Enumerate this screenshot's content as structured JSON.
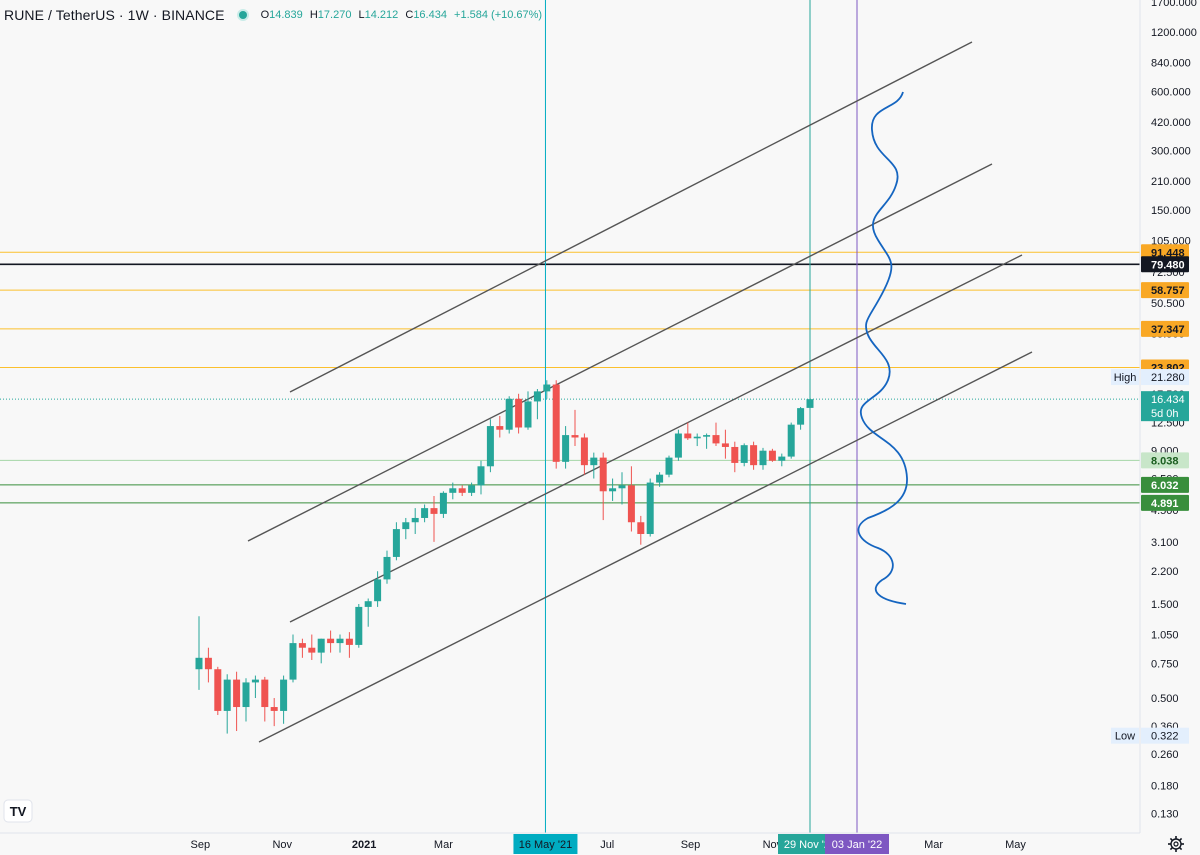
{
  "legend": {
    "symbol": "RUNE / TetherUS · 1W · BINANCE",
    "ohlc": [
      {
        "k": "O",
        "v": "14.839"
      },
      {
        "k": "H",
        "v": "17.270"
      },
      {
        "k": "L",
        "v": "14.212"
      },
      {
        "k": "C",
        "v": "16.434"
      }
    ],
    "change": "+1.584 (+10.67%)"
  },
  "colors": {
    "up": "#26a69a",
    "down": "#ef5350",
    "background": "#f8f8f8",
    "channel": "#555555",
    "fib_line": "#fbc02d",
    "black_line": "#131722",
    "green_line": "#388e3c",
    "may_line": "#00acc1",
    "nov_line": "#26a69a",
    "jan_line": "#7e57c2",
    "wave": "#1565c0"
  },
  "chart_data": {
    "type": "candlestick",
    "symbol": "RUNE / TetherUS",
    "interval": "1W",
    "exchange": "BINANCE",
    "y_scale": "log",
    "ylim": [
      0.11,
      1800
    ],
    "y_ticks": [
      "0.130",
      "0.180",
      "0.260",
      "0.360",
      "0.500",
      "0.750",
      "1.050",
      "1.500",
      "2.200",
      "3.100",
      "4.500",
      "6.500",
      "9.000",
      "12.500",
      "17.500",
      "35.500",
      "50.500",
      "72.500",
      "105.000",
      "150.000",
      "210.000",
      "300.000",
      "420.000",
      "600.000",
      "840.000",
      "1200.000",
      "1700.000"
    ],
    "x_ticks": [
      {
        "label": "Sep",
        "date": "2020-09-01"
      },
      {
        "label": "Nov",
        "date": "2020-11-01"
      },
      {
        "label": "2021",
        "date": "2021-01-01"
      },
      {
        "label": "Mar",
        "date": "2021-03-01"
      },
      {
        "label": "Jul",
        "date": "2021-07-01"
      },
      {
        "label": "Sep",
        "date": "2021-09-01"
      },
      {
        "label": "Nov",
        "date": "2021-11-01"
      },
      {
        "label": "Mar",
        "date": "2022-03-01"
      },
      {
        "label": "May",
        "date": "2022-05-01"
      }
    ],
    "x_start": "2020-08-31",
    "candles": [
      {
        "o": 0.7,
        "h": 1.3,
        "l": 0.55,
        "c": 0.8
      },
      {
        "o": 0.8,
        "h": 0.9,
        "l": 0.6,
        "c": 0.7
      },
      {
        "o": 0.7,
        "h": 0.72,
        "l": 0.41,
        "c": 0.43
      },
      {
        "o": 0.43,
        "h": 0.66,
        "l": 0.33,
        "c": 0.62
      },
      {
        "o": 0.62,
        "h": 0.68,
        "l": 0.34,
        "c": 0.45
      },
      {
        "o": 0.45,
        "h": 0.63,
        "l": 0.38,
        "c": 0.6
      },
      {
        "o": 0.6,
        "h": 0.65,
        "l": 0.5,
        "c": 0.62
      },
      {
        "o": 0.62,
        "h": 0.64,
        "l": 0.38,
        "c": 0.45
      },
      {
        "o": 0.45,
        "h": 0.5,
        "l": 0.36,
        "c": 0.43
      },
      {
        "o": 0.43,
        "h": 0.65,
        "l": 0.37,
        "c": 0.62
      },
      {
        "o": 0.62,
        "h": 1.05,
        "l": 0.6,
        "c": 0.95
      },
      {
        "o": 0.95,
        "h": 1.0,
        "l": 0.8,
        "c": 0.9
      },
      {
        "o": 0.9,
        "h": 1.05,
        "l": 0.78,
        "c": 0.85
      },
      {
        "o": 0.85,
        "h": 1.0,
        "l": 0.75,
        "c": 1.0
      },
      {
        "o": 1.0,
        "h": 1.1,
        "l": 0.85,
        "c": 0.95
      },
      {
        "o": 0.95,
        "h": 1.05,
        "l": 0.85,
        "c": 1.0
      },
      {
        "o": 1.0,
        "h": 1.08,
        "l": 0.8,
        "c": 0.93
      },
      {
        "o": 0.93,
        "h": 1.5,
        "l": 0.9,
        "c": 1.45
      },
      {
        "o": 1.45,
        "h": 1.6,
        "l": 1.15,
        "c": 1.55
      },
      {
        "o": 1.55,
        "h": 2.2,
        "l": 1.45,
        "c": 2.0
      },
      {
        "o": 2.0,
        "h": 2.8,
        "l": 1.9,
        "c": 2.6
      },
      {
        "o": 2.6,
        "h": 3.9,
        "l": 2.5,
        "c": 3.6
      },
      {
        "o": 3.6,
        "h": 4.1,
        "l": 3.2,
        "c": 3.9
      },
      {
        "o": 3.9,
        "h": 4.6,
        "l": 3.4,
        "c": 4.1
      },
      {
        "o": 4.1,
        "h": 4.8,
        "l": 3.9,
        "c": 4.6
      },
      {
        "o": 4.6,
        "h": 5.3,
        "l": 3.1,
        "c": 4.3
      },
      {
        "o": 4.3,
        "h": 5.6,
        "l": 4.1,
        "c": 5.5
      },
      {
        "o": 5.5,
        "h": 6.2,
        "l": 5.1,
        "c": 5.8
      },
      {
        "o": 5.8,
        "h": 6.0,
        "l": 5.3,
        "c": 5.5
      },
      {
        "o": 5.5,
        "h": 6.2,
        "l": 5.3,
        "c": 6.0
      },
      {
        "o": 6.0,
        "h": 8.0,
        "l": 5.4,
        "c": 7.5
      },
      {
        "o": 7.5,
        "h": 13.0,
        "l": 7.0,
        "c": 12.0
      },
      {
        "o": 12.0,
        "h": 13.5,
        "l": 10.5,
        "c": 11.5
      },
      {
        "o": 11.5,
        "h": 17.0,
        "l": 11.0,
        "c": 16.5
      },
      {
        "o": 16.5,
        "h": 17.5,
        "l": 11.0,
        "c": 11.8
      },
      {
        "o": 11.8,
        "h": 18.0,
        "l": 11.5,
        "c": 16.0
      },
      {
        "o": 16.0,
        "h": 18.5,
        "l": 13.0,
        "c": 18.0
      },
      {
        "o": 18.0,
        "h": 20.5,
        "l": 16.5,
        "c": 19.5
      },
      {
        "o": 19.5,
        "h": 20.5,
        "l": 7.3,
        "c": 7.9
      },
      {
        "o": 7.9,
        "h": 12.0,
        "l": 7.3,
        "c": 10.8
      },
      {
        "o": 10.8,
        "h": 14.5,
        "l": 9.5,
        "c": 10.5
      },
      {
        "o": 10.5,
        "h": 11.0,
        "l": 6.8,
        "c": 7.6
      },
      {
        "o": 7.6,
        "h": 8.8,
        "l": 6.5,
        "c": 8.3
      },
      {
        "o": 8.3,
        "h": 8.8,
        "l": 4.0,
        "c": 5.6
      },
      {
        "o": 5.6,
        "h": 6.5,
        "l": 5.0,
        "c": 5.8
      },
      {
        "o": 5.8,
        "h": 7.0,
        "l": 4.8,
        "c": 6.0
      },
      {
        "o": 6.0,
        "h": 7.5,
        "l": 3.5,
        "c": 3.9
      },
      {
        "o": 3.9,
        "h": 4.2,
        "l": 3.0,
        "c": 3.4
      },
      {
        "o": 3.4,
        "h": 6.5,
        "l": 3.3,
        "c": 6.2
      },
      {
        "o": 6.2,
        "h": 7.0,
        "l": 5.9,
        "c": 6.8
      },
      {
        "o": 6.8,
        "h": 8.5,
        "l": 6.6,
        "c": 8.3
      },
      {
        "o": 8.3,
        "h": 11.5,
        "l": 8.0,
        "c": 11.0
      },
      {
        "o": 11.0,
        "h": 12.5,
        "l": 10.2,
        "c": 10.4
      },
      {
        "o": 10.4,
        "h": 11.0,
        "l": 9.5,
        "c": 10.6
      },
      {
        "o": 10.6,
        "h": 11.0,
        "l": 9.2,
        "c": 10.8
      },
      {
        "o": 10.8,
        "h": 12.5,
        "l": 9.5,
        "c": 9.8
      },
      {
        "o": 9.8,
        "h": 11.5,
        "l": 8.2,
        "c": 9.4
      },
      {
        "o": 9.4,
        "h": 10.0,
        "l": 7.0,
        "c": 7.8
      },
      {
        "o": 7.8,
        "h": 9.8,
        "l": 7.5,
        "c": 9.6
      },
      {
        "o": 9.6,
        "h": 10.0,
        "l": 7.2,
        "c": 7.6
      },
      {
        "o": 7.6,
        "h": 9.3,
        "l": 7.2,
        "c": 9.0
      },
      {
        "o": 9.0,
        "h": 9.2,
        "l": 7.9,
        "c": 8.0
      },
      {
        "o": 8.0,
        "h": 8.7,
        "l": 7.5,
        "c": 8.4
      },
      {
        "o": 8.4,
        "h": 12.5,
        "l": 8.2,
        "c": 12.2
      },
      {
        "o": 12.2,
        "h": 15.0,
        "l": 11.5,
        "c": 14.8
      },
      {
        "o": 14.839,
        "h": 17.27,
        "l": 14.212,
        "c": 16.434
      }
    ],
    "horizontal_levels": [
      {
        "value": 91.448,
        "label": "91.448",
        "kind": "fib"
      },
      {
        "value": 79.48,
        "label": "79.480",
        "kind": "black"
      },
      {
        "value": 58.757,
        "label": "58.757",
        "kind": "fib"
      },
      {
        "value": 37.347,
        "label": "37.347",
        "kind": "fib"
      },
      {
        "value": 23.802,
        "label": "23.802",
        "kind": "fib"
      },
      {
        "value": 8.038,
        "label": "8.038",
        "kind": "light-green"
      },
      {
        "value": 6.032,
        "label": "6.032",
        "kind": "green"
      },
      {
        "value": 4.891,
        "label": "4.891",
        "kind": "green"
      }
    ],
    "last_price": {
      "value": 16.434,
      "label": "16.434",
      "countdown": "5d 0h"
    },
    "high": {
      "tag": "High",
      "value": 21.28,
      "label": "21.280"
    },
    "low": {
      "tag": "Low",
      "value": 0.322,
      "label": "0.322"
    },
    "vertical_markers": [
      {
        "date": "2021-05-16",
        "label": "16 May '21",
        "kind": "may"
      },
      {
        "date": "2021-11-29",
        "label": "29 Nov '21",
        "kind": "nov"
      },
      {
        "date": "2022-01-03",
        "label": "03 Jan '22",
        "kind": "jan"
      }
    ]
  }
}
